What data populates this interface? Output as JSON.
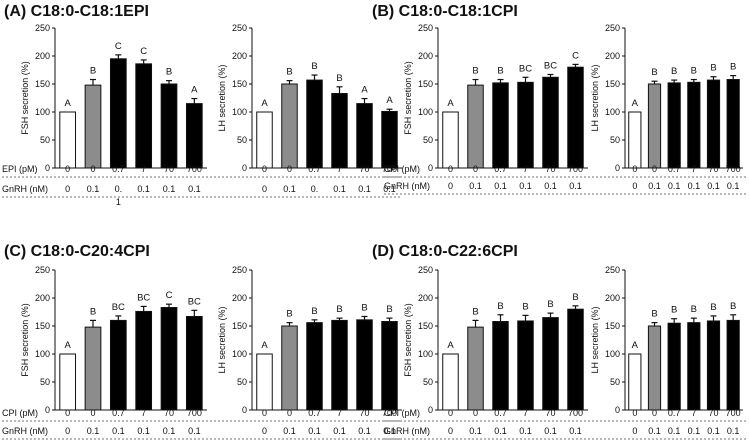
{
  "chart_data": [
    {
      "panel_label": "(A) C18:0-C18:1EPI",
      "type": "bar",
      "row_labels": [
        "EPI (pM)",
        "GnRH (nM)"
      ],
      "dose_values": [
        "0",
        "0",
        "0.7",
        "7",
        "70",
        "700"
      ],
      "gnrh_values": [
        "0",
        "0.1",
        "0.",
        "0.1",
        "0.1",
        "0.1"
      ],
      "gnrh_wrap": "1",
      "bar_colors": [
        "#ffffff",
        "#8c8c8c",
        "#000000",
        "#000000",
        "#000000",
        "#000000"
      ],
      "subplots": [
        {
          "ylabel": "FSH secretion (%)",
          "ylim": [
            0,
            250
          ],
          "yticks": [
            "0",
            "50",
            "100",
            "150",
            "200",
            "250"
          ],
          "values": [
            100,
            148,
            195,
            186,
            150,
            115
          ],
          "errors": [
            0,
            10,
            7,
            7,
            6,
            9
          ],
          "letters": [
            "A",
            "B",
            "C",
            "C",
            "B",
            "A"
          ]
        },
        {
          "ylabel": "LH secretion (%)",
          "ylim": [
            0,
            250
          ],
          "yticks": [
            "0",
            "50",
            "100",
            "150",
            "200",
            "250"
          ],
          "values": [
            100,
            150,
            157,
            133,
            115,
            101
          ],
          "errors": [
            0,
            6,
            9,
            12,
            9,
            4
          ],
          "letters": [
            "A",
            "B",
            "B",
            "B",
            "A",
            "A"
          ]
        }
      ]
    },
    {
      "panel_label": "(B) C18:0-C18:1CPI",
      "type": "bar",
      "row_labels": [
        "CPI (pM)",
        "GnRH (nM)"
      ],
      "dose_values": [
        "0",
        "0",
        "0.7",
        "7",
        "70",
        "700"
      ],
      "gnrh_values": [
        "0",
        "0.1",
        "0.1",
        "0.1",
        "0.1",
        "0.1"
      ],
      "gnrh_wrap": "",
      "bar_colors": [
        "#ffffff",
        "#8c8c8c",
        "#000000",
        "#000000",
        "#000000",
        "#000000"
      ],
      "subplots": [
        {
          "ylabel": "FSH secretion (%)",
          "ylim": [
            0,
            250
          ],
          "yticks": [
            "0",
            "50",
            "100",
            "150",
            "200",
            "250"
          ],
          "values": [
            100,
            148,
            152,
            153,
            162,
            180
          ],
          "errors": [
            0,
            10,
            6,
            9,
            5,
            5
          ],
          "letters": [
            "A",
            "B",
            "B",
            "BC",
            "BC",
            "C"
          ]
        },
        {
          "ylabel": "LH secretion (%)",
          "ylim": [
            0,
            250
          ],
          "yticks": [
            "0",
            "50",
            "100",
            "150",
            "200",
            "250"
          ],
          "values": [
            100,
            150,
            152,
            153,
            157,
            158
          ],
          "errors": [
            0,
            5,
            5,
            5,
            6,
            7
          ],
          "letters": [
            "A",
            "B",
            "B",
            "B",
            "B",
            "B"
          ]
        }
      ]
    },
    {
      "panel_label": "(C) C18:0-C20:4CPI",
      "type": "bar",
      "row_labels": [
        "CPI (pM)",
        "GnRH (nM)"
      ],
      "dose_values": [
        "0",
        "0",
        "0.7",
        "7",
        "70",
        "700"
      ],
      "gnrh_values": [
        "0",
        "0.1",
        "0.1",
        "0.1",
        "0.1",
        "0.1"
      ],
      "gnrh_wrap": "",
      "bar_colors": [
        "#ffffff",
        "#8c8c8c",
        "#000000",
        "#000000",
        "#000000",
        "#000000"
      ],
      "subplots": [
        {
          "ylabel": "FSH secretion (%)",
          "ylim": [
            0,
            250
          ],
          "yticks": [
            "0",
            "50",
            "100",
            "150",
            "200",
            "250"
          ],
          "values": [
            100,
            148,
            160,
            176,
            183,
            167
          ],
          "errors": [
            0,
            12,
            8,
            9,
            6,
            11
          ],
          "letters": [
            "A",
            "B",
            "BC",
            "BC",
            "C",
            "BC"
          ]
        },
        {
          "ylabel": "LH secretion (%)",
          "ylim": [
            0,
            250
          ],
          "yticks": [
            "0",
            "50",
            "100",
            "150",
            "200",
            "250"
          ],
          "values": [
            100,
            150,
            156,
            160,
            161,
            158
          ],
          "errors": [
            0,
            6,
            5,
            4,
            6,
            6
          ],
          "letters": [
            "A",
            "B",
            "B",
            "B",
            "B",
            "B"
          ]
        }
      ]
    },
    {
      "panel_label": "(D) C18:0-C22:6CPI",
      "type": "bar",
      "row_labels": [
        "CPI (pM)",
        "GnRH (nM)"
      ],
      "dose_values": [
        "0",
        "0",
        "0.7",
        "7",
        "70",
        "700"
      ],
      "gnrh_values": [
        "0",
        "0.1",
        "0.1",
        "0.1",
        "0.1",
        "0.1"
      ],
      "gnrh_wrap": "",
      "bar_colors": [
        "#ffffff",
        "#8c8c8c",
        "#000000",
        "#000000",
        "#000000",
        "#000000"
      ],
      "subplots": [
        {
          "ylabel": "FSH secretion (%)",
          "ylim": [
            0,
            250
          ],
          "yticks": [
            "0",
            "50",
            "100",
            "150",
            "200",
            "250"
          ],
          "values": [
            100,
            148,
            158,
            159,
            165,
            180
          ],
          "errors": [
            0,
            12,
            12,
            10,
            8,
            6
          ],
          "letters": [
            "A",
            "B",
            "B",
            "B",
            "B",
            "B"
          ]
        },
        {
          "ylabel": "LH secretion (%)",
          "ylim": [
            0,
            250
          ],
          "yticks": [
            "0",
            "50",
            "100",
            "150",
            "200",
            "250"
          ],
          "values": [
            100,
            150,
            155,
            156,
            159,
            160
          ],
          "errors": [
            0,
            6,
            8,
            8,
            9,
            10
          ],
          "letters": [
            "A",
            "B",
            "B",
            "B",
            "B",
            "B"
          ]
        }
      ]
    }
  ]
}
